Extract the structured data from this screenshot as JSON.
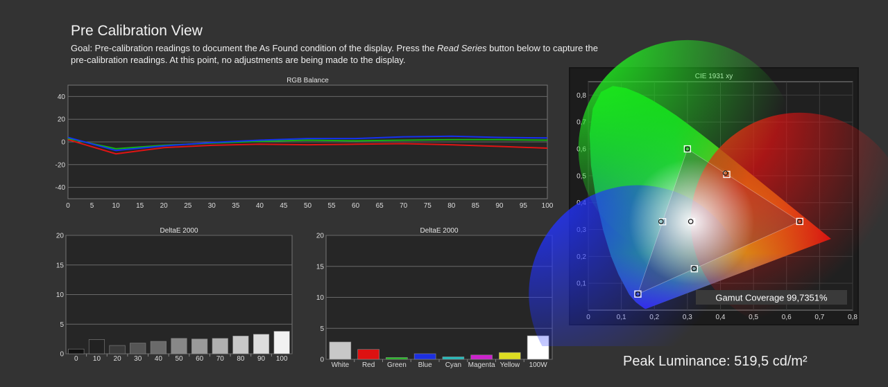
{
  "header": {
    "title": "Pre Calibration View",
    "goal_pre": "Goal: Pre-calibration readings to document the As Found condition of the display. Press the ",
    "goal_em": "Read Series",
    "goal_post": " button below to capture the pre-calibration readings. At this point, no adjustments are being made to the display."
  },
  "peak_luminance": "Peak Luminance: 519,5 cd/m²",
  "chart_data": [
    {
      "type": "line",
      "title": "RGB Balance",
      "x": [
        0,
        10,
        20,
        30,
        40,
        50,
        60,
        70,
        80,
        90,
        100
      ],
      "xlim": [
        0,
        100
      ],
      "xticks": [
        0,
        5,
        10,
        15,
        20,
        25,
        30,
        35,
        40,
        45,
        50,
        55,
        60,
        65,
        70,
        75,
        80,
        85,
        90,
        95,
        100
      ],
      "ylim": [
        -50,
        50
      ],
      "yticks": [
        40,
        20,
        0,
        -20,
        -40
      ],
      "grid": true,
      "series": [
        {
          "color": "#e01414",
          "values": [
            2,
            -10.5,
            -5,
            -3,
            -2,
            -2.5,
            -2,
            -1.5,
            -2.5,
            -4,
            -5.5
          ]
        },
        {
          "color": "#14b414",
          "values": [
            3,
            -6,
            -3,
            -1,
            0.5,
            1.5,
            1,
            1.5,
            2,
            2,
            1.5
          ]
        },
        {
          "color": "#1432f0",
          "values": [
            4,
            -7.5,
            -3.5,
            -0.5,
            1.5,
            3,
            3,
            4.5,
            5,
            4,
            3.5
          ]
        }
      ]
    },
    {
      "type": "bar",
      "title": "DeltaE 2000",
      "categories": [
        "0",
        "10",
        "20",
        "30",
        "40",
        "50",
        "60",
        "70",
        "80",
        "90",
        "100"
      ],
      "values": [
        0.8,
        2.4,
        1.4,
        1.8,
        2.1,
        2.6,
        2.5,
        2.6,
        3.0,
        3.3,
        3.8
      ],
      "colors": [
        "#111111",
        "#222222",
        "#3a3a3a",
        "#555555",
        "#6a6a6a",
        "#888888",
        "#9a9a9a",
        "#b0b0b0",
        "#c8c8c8",
        "#dddddd",
        "#f2f2f2"
      ],
      "ylim": [
        0,
        20
      ],
      "yticks": [
        20,
        15,
        10,
        5,
        0
      ]
    },
    {
      "type": "bar",
      "title": "DeltaE 2000",
      "categories": [
        "White",
        "Red",
        "Green",
        "Blue",
        "Cyan",
        "Magenta",
        "Yellow",
        "100W"
      ],
      "values": [
        2.8,
        1.6,
        0.3,
        0.9,
        0.4,
        0.7,
        1.1,
        3.8
      ],
      "colors": [
        "#c8c8c8",
        "#dd1111",
        "#22bb22",
        "#1c2fe0",
        "#22bbbb",
        "#cc22cc",
        "#dddd22",
        "#ffffff"
      ],
      "ylim": [
        0,
        20
      ],
      "yticks": [
        20,
        15,
        10,
        5,
        0
      ]
    },
    {
      "type": "scatter",
      "title": "CIE 1931 xy",
      "xlim": [
        0,
        0.8
      ],
      "ylim": [
        0,
        0.85
      ],
      "xticks": [
        "0",
        "0,1",
        "0,2",
        "0,3",
        "0,4",
        "0,5",
        "0,6",
        "0,7",
        "0,8"
      ],
      "yticks": [
        "0,1",
        "0,2",
        "0,3",
        "0,4",
        "0,5",
        "0,6",
        "0,7",
        "0,8"
      ],
      "targets": [
        {
          "name": "red",
          "x": 0.64,
          "y": 0.33
        },
        {
          "name": "green",
          "x": 0.3,
          "y": 0.6
        },
        {
          "name": "blue",
          "x": 0.15,
          "y": 0.06
        },
        {
          "name": "white",
          "x": 0.3127,
          "y": 0.329
        },
        {
          "name": "cyan",
          "x": 0.225,
          "y": 0.329
        },
        {
          "name": "magenta",
          "x": 0.321,
          "y": 0.154
        },
        {
          "name": "yellow",
          "x": 0.419,
          "y": 0.505
        }
      ],
      "measured": [
        {
          "name": "red",
          "x": 0.64,
          "y": 0.33
        },
        {
          "name": "green",
          "x": 0.3,
          "y": 0.6
        },
        {
          "name": "blue",
          "x": 0.15,
          "y": 0.06
        },
        {
          "name": "white",
          "x": 0.31,
          "y": 0.33
        },
        {
          "name": "cyan",
          "x": 0.22,
          "y": 0.33
        },
        {
          "name": "magenta",
          "x": 0.32,
          "y": 0.155
        },
        {
          "name": "yellow",
          "x": 0.415,
          "y": 0.51
        }
      ],
      "annotation": "Gamut Coverage 99,7351%"
    }
  ]
}
